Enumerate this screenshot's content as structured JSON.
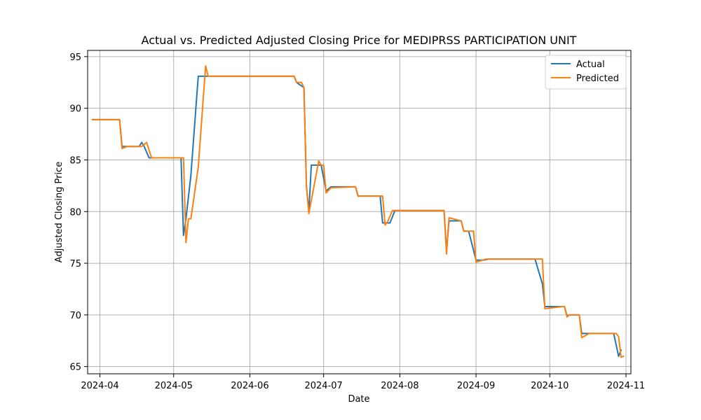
{
  "chart_data": {
    "type": "line",
    "title": "Actual vs. Predicted Adjusted Closing Price for MEDIPRSS PARTICIPATION UNIT",
    "xlabel": "Date",
    "ylabel": "Adjusted Closing Price",
    "x_ticks": [
      "2024-04",
      "2024-05",
      "2024-06",
      "2024-07",
      "2024-08",
      "2024-09",
      "2024-10",
      "2024-11"
    ],
    "x_tick_dates": [
      "2024-04-01",
      "2024-05-01",
      "2024-06-01",
      "2024-07-01",
      "2024-08-01",
      "2024-09-01",
      "2024-10-01",
      "2024-11-01"
    ],
    "y_ticks": [
      65,
      70,
      75,
      80,
      85,
      90,
      95
    ],
    "xlim": [
      "2024-03-27",
      "2024-11-03"
    ],
    "ylim": [
      64.3,
      95.6
    ],
    "grid": true,
    "legend_position": "top-right",
    "colors": {
      "actual": "#1f77b4",
      "predicted": "#ff7f0e"
    },
    "series": [
      {
        "name": "Actual",
        "points": [
          [
            "2024-03-29",
            88.9
          ],
          [
            "2024-04-09",
            88.9
          ],
          [
            "2024-04-10",
            86.3
          ],
          [
            "2024-04-17",
            86.3
          ],
          [
            "2024-04-18",
            86.7
          ],
          [
            "2024-04-19",
            86.3
          ],
          [
            "2024-04-21",
            85.2
          ],
          [
            "2024-05-04",
            85.2
          ],
          [
            "2024-05-05",
            77.7
          ],
          [
            "2024-05-06",
            79.3
          ],
          [
            "2024-05-08",
            83.5
          ],
          [
            "2024-05-11",
            93.1
          ],
          [
            "2024-06-19",
            93.1
          ],
          [
            "2024-06-20",
            92.5
          ],
          [
            "2024-06-23",
            92.0
          ],
          [
            "2024-06-24",
            82.5
          ],
          [
            "2024-06-25",
            80.0
          ],
          [
            "2024-06-26",
            84.5
          ],
          [
            "2024-06-30",
            84.5
          ],
          [
            "2024-07-02",
            82.0
          ],
          [
            "2024-07-04",
            82.4
          ],
          [
            "2024-07-14",
            82.4
          ],
          [
            "2024-07-15",
            81.5
          ],
          [
            "2024-07-24",
            81.5
          ],
          [
            "2024-07-25",
            78.9
          ],
          [
            "2024-07-28",
            78.9
          ],
          [
            "2024-07-30",
            80.1
          ],
          [
            "2024-08-19",
            80.1
          ],
          [
            "2024-08-20",
            76.2
          ],
          [
            "2024-08-21",
            79.1
          ],
          [
            "2024-08-26",
            79.1
          ],
          [
            "2024-08-27",
            78.1
          ],
          [
            "2024-08-29",
            78.1
          ],
          [
            "2024-09-01",
            75.3
          ],
          [
            "2024-09-04",
            75.3
          ],
          [
            "2024-09-06",
            75.4
          ],
          [
            "2024-09-25",
            75.4
          ],
          [
            "2024-09-28",
            73.0
          ],
          [
            "2024-09-29",
            70.8
          ],
          [
            "2024-10-07",
            70.8
          ],
          [
            "2024-10-08",
            69.9
          ],
          [
            "2024-10-09",
            70.0
          ],
          [
            "2024-10-13",
            70.0
          ],
          [
            "2024-10-14",
            68.2
          ],
          [
            "2024-10-27",
            68.2
          ],
          [
            "2024-10-29",
            66.0
          ],
          [
            "2024-10-30",
            66.6
          ]
        ]
      },
      {
        "name": "Predicted",
        "points": [
          [
            "2024-03-29",
            88.9
          ],
          [
            "2024-04-09",
            88.9
          ],
          [
            "2024-04-10",
            86.1
          ],
          [
            "2024-04-12",
            86.3
          ],
          [
            "2024-04-18",
            86.3
          ],
          [
            "2024-04-20",
            86.7
          ],
          [
            "2024-04-22",
            85.2
          ],
          [
            "2024-05-05",
            85.2
          ],
          [
            "2024-05-06",
            77.0
          ],
          [
            "2024-05-07",
            79.3
          ],
          [
            "2024-05-08",
            79.3
          ],
          [
            "2024-05-11",
            84.3
          ],
          [
            "2024-05-14",
            94.1
          ],
          [
            "2024-05-15",
            93.1
          ],
          [
            "2024-06-19",
            93.1
          ],
          [
            "2024-06-20",
            92.5
          ],
          [
            "2024-06-22",
            92.5
          ],
          [
            "2024-06-23",
            92.0
          ],
          [
            "2024-06-24",
            82.5
          ],
          [
            "2024-06-25",
            79.8
          ],
          [
            "2024-06-29",
            84.9
          ],
          [
            "2024-06-30",
            84.5
          ],
          [
            "2024-07-01",
            84.5
          ],
          [
            "2024-07-02",
            81.8
          ],
          [
            "2024-07-04",
            82.3
          ],
          [
            "2024-07-14",
            82.4
          ],
          [
            "2024-07-15",
            81.5
          ],
          [
            "2024-07-25",
            81.5
          ],
          [
            "2024-07-26",
            78.7
          ],
          [
            "2024-07-27",
            79.0
          ],
          [
            "2024-07-29",
            80.1
          ],
          [
            "2024-08-19",
            80.1
          ],
          [
            "2024-08-20",
            75.9
          ],
          [
            "2024-08-21",
            79.4
          ],
          [
            "2024-08-26",
            79.1
          ],
          [
            "2024-08-27",
            78.1
          ],
          [
            "2024-08-31",
            78.1
          ],
          [
            "2024-09-01",
            75.1
          ],
          [
            "2024-09-05",
            75.4
          ],
          [
            "2024-09-28",
            75.4
          ],
          [
            "2024-09-29",
            70.6
          ],
          [
            "2024-10-06",
            70.8
          ],
          [
            "2024-10-07",
            70.8
          ],
          [
            "2024-10-08",
            69.8
          ],
          [
            "2024-10-09",
            70.0
          ],
          [
            "2024-10-13",
            70.0
          ],
          [
            "2024-10-14",
            67.8
          ],
          [
            "2024-10-17",
            68.2
          ],
          [
            "2024-10-28",
            68.2
          ],
          [
            "2024-10-29",
            67.9
          ],
          [
            "2024-10-30",
            65.9
          ],
          [
            "2024-10-31",
            66.0
          ]
        ]
      }
    ]
  }
}
